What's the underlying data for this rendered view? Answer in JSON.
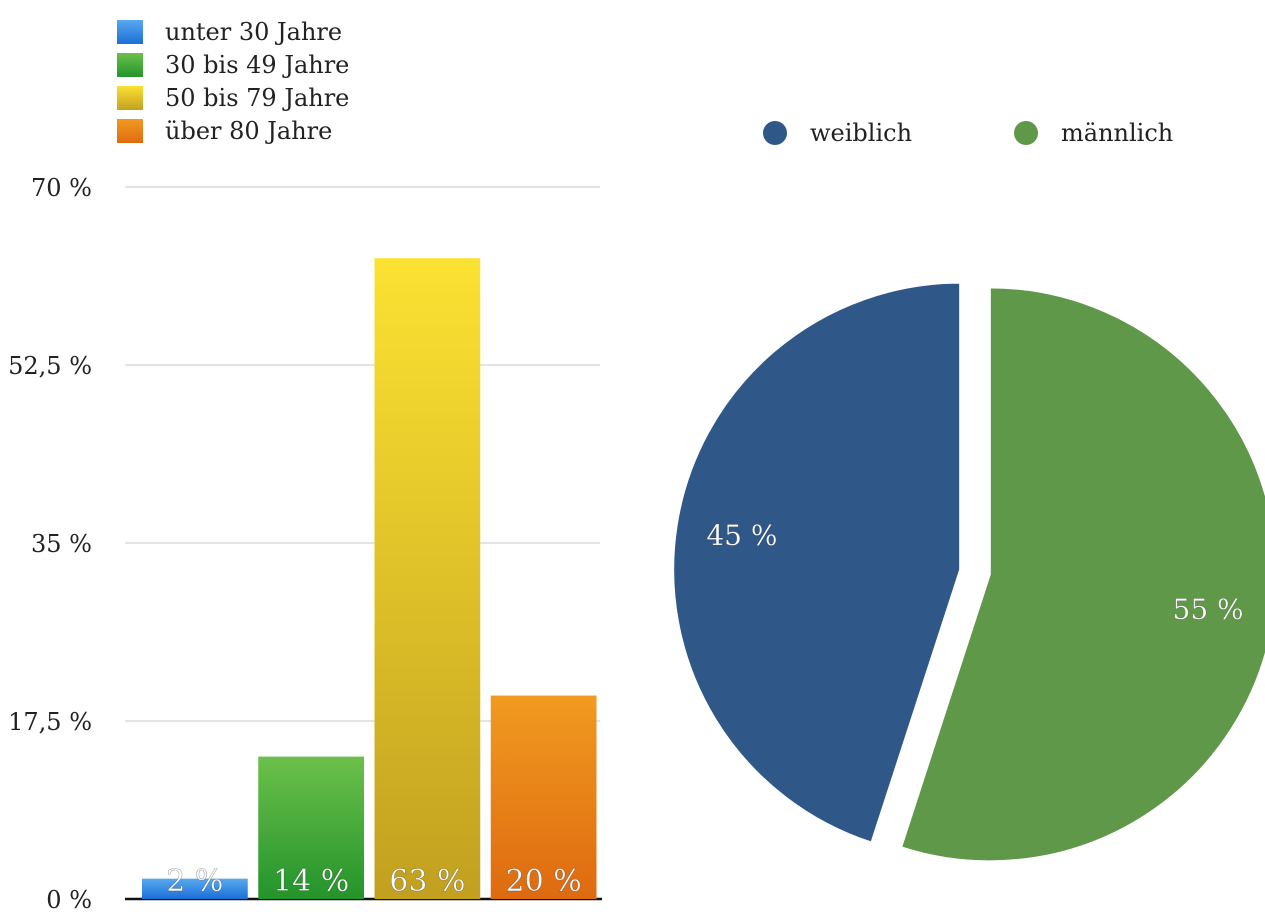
{
  "chart_data": [
    {
      "type": "bar",
      "categories": [
        "unter 30 Jahre",
        "30 bis 49 Jahre",
        "50 bis 79 Jahre",
        "über 80 Jahre"
      ],
      "values": [
        2,
        14,
        63,
        20
      ],
      "data_labels": [
        "2 %",
        "14 %",
        "63 %",
        "20 %"
      ],
      "ylim": [
        0,
        70
      ],
      "yticks": [
        0,
        17.5,
        35,
        52.5,
        70
      ],
      "ytick_labels": [
        "0 %",
        "17,5 %",
        "35 %",
        "52,5 %",
        "70 %"
      ],
      "grid": true,
      "legend_position": "top-left",
      "colors": [
        {
          "top": "#5aa8f0",
          "bottom": "#1a6fd6"
        },
        {
          "top": "#6cc04a",
          "bottom": "#23942b"
        },
        {
          "top": "#fbe232",
          "bottom": "#c2a020"
        },
        {
          "top": "#f19a20",
          "bottom": "#de6a10"
        }
      ]
    },
    {
      "type": "pie",
      "categories": [
        "weiblich",
        "männlich"
      ],
      "values": [
        45,
        55
      ],
      "data_labels": [
        "45 %",
        "55 %"
      ],
      "legend_position": "top",
      "colors": [
        "#2f5889",
        "#5f9849"
      ]
    }
  ]
}
